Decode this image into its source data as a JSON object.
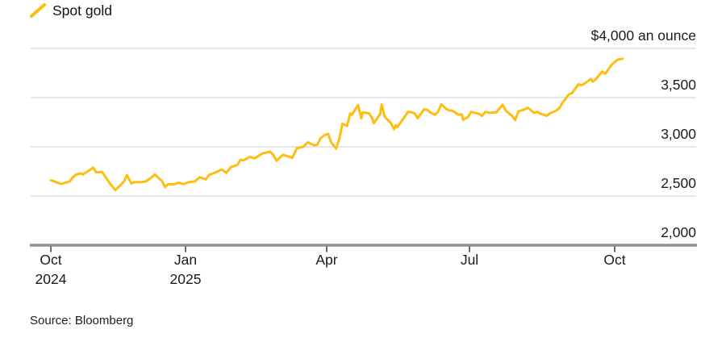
{
  "page": {
    "background": "#FFFFFF"
  },
  "legend": {
    "label": "Spot gold"
  },
  "source": {
    "text": "Source: Bloomberg"
  },
  "colors": {
    "line": "#FDBE10",
    "grid": "#DFDFDF",
    "axis_baseline": "#8F8F8F",
    "tick_mark": "#5A5A5A",
    "text": "#1B1B20"
  },
  "chart_data": {
    "type": "line",
    "grid": "horizontal",
    "legend_position": "top-left",
    "y_axis": {
      "side": "right",
      "range": [
        2000,
        4000
      ],
      "ticks": [
        {
          "value": 4000,
          "label": "$4,000 an ounce"
        },
        {
          "value": 3500,
          "label": "3,500"
        },
        {
          "value": 3000,
          "label": "3,000"
        },
        {
          "value": 2500,
          "label": "2,500"
        },
        {
          "value": 2000,
          "label": "2,000"
        }
      ]
    },
    "x_axis": {
      "ticks": [
        {
          "date": "2024-10-01",
          "label": "Oct",
          "sublabel": "2024"
        },
        {
          "date": "2025-01-01",
          "label": "Jan",
          "sublabel": "2025"
        },
        {
          "date": "2025-04-01",
          "label": "Apr",
          "sublabel": ""
        },
        {
          "date": "2025-07-01",
          "label": "Jul",
          "sublabel": ""
        },
        {
          "date": "2025-10-01",
          "label": "Oct",
          "sublabel": ""
        }
      ]
    },
    "series": [
      {
        "name": "Spot gold",
        "color": "#FDBE10",
        "points": [
          [
            "2024-10-01",
            2660
          ],
          [
            "2024-10-03",
            2650
          ],
          [
            "2024-10-08",
            2622
          ],
          [
            "2024-10-10",
            2632
          ],
          [
            "2024-10-14",
            2648
          ],
          [
            "2024-10-16",
            2690
          ],
          [
            "2024-10-18",
            2715
          ],
          [
            "2024-10-21",
            2730
          ],
          [
            "2024-10-23",
            2720
          ],
          [
            "2024-10-25",
            2740
          ],
          [
            "2024-10-30",
            2788
          ],
          [
            "2024-11-01",
            2740
          ],
          [
            "2024-11-05",
            2746
          ],
          [
            "2024-11-07",
            2700
          ],
          [
            "2024-11-11",
            2615
          ],
          [
            "2024-11-14",
            2560
          ],
          [
            "2024-11-18",
            2615
          ],
          [
            "2024-11-20",
            2650
          ],
          [
            "2024-11-22",
            2712
          ],
          [
            "2024-11-25",
            2628
          ],
          [
            "2024-11-27",
            2640
          ],
          [
            "2024-12-02",
            2642
          ],
          [
            "2024-12-05",
            2648
          ],
          [
            "2024-12-09",
            2692
          ],
          [
            "2024-12-11",
            2718
          ],
          [
            "2024-12-16",
            2650
          ],
          [
            "2024-12-18",
            2590
          ],
          [
            "2024-12-20",
            2620
          ],
          [
            "2024-12-24",
            2618
          ],
          [
            "2024-12-27",
            2635
          ],
          [
            "2024-12-31",
            2622
          ],
          [
            "2025-01-03",
            2640
          ],
          [
            "2025-01-07",
            2648
          ],
          [
            "2025-01-10",
            2690
          ],
          [
            "2025-01-14",
            2670
          ],
          [
            "2025-01-16",
            2715
          ],
          [
            "2025-01-21",
            2745
          ],
          [
            "2025-01-24",
            2770
          ],
          [
            "2025-01-27",
            2735
          ],
          [
            "2025-01-30",
            2794
          ],
          [
            "2025-02-03",
            2815
          ],
          [
            "2025-02-05",
            2868
          ],
          [
            "2025-02-07",
            2862
          ],
          [
            "2025-02-11",
            2898
          ],
          [
            "2025-02-14",
            2883
          ],
          [
            "2025-02-19",
            2933
          ],
          [
            "2025-02-21",
            2940
          ],
          [
            "2025-02-24",
            2950
          ],
          [
            "2025-02-26",
            2915
          ],
          [
            "2025-02-28",
            2858
          ],
          [
            "2025-03-04",
            2918
          ],
          [
            "2025-03-06",
            2910
          ],
          [
            "2025-03-10",
            2888
          ],
          [
            "2025-03-13",
            2985
          ],
          [
            "2025-03-17",
            3000
          ],
          [
            "2025-03-20",
            3045
          ],
          [
            "2025-03-24",
            3015
          ],
          [
            "2025-03-26",
            3020
          ],
          [
            "2025-03-28",
            3085
          ],
          [
            "2025-03-31",
            3122
          ],
          [
            "2025-04-02",
            3130
          ],
          [
            "2025-04-04",
            3040
          ],
          [
            "2025-04-07",
            2982
          ],
          [
            "2025-04-09",
            3080
          ],
          [
            "2025-04-11",
            3235
          ],
          [
            "2025-04-14",
            3212
          ],
          [
            "2025-04-16",
            3340
          ],
          [
            "2025-04-17",
            3325
          ],
          [
            "2025-04-21",
            3425
          ],
          [
            "2025-04-23",
            3290
          ],
          [
            "2025-04-24",
            3350
          ],
          [
            "2025-04-28",
            3340
          ],
          [
            "2025-04-30",
            3290
          ],
          [
            "2025-05-01",
            3240
          ],
          [
            "2025-05-05",
            3330
          ],
          [
            "2025-05-06",
            3430
          ],
          [
            "2025-05-08",
            3305
          ],
          [
            "2025-05-12",
            3240
          ],
          [
            "2025-05-14",
            3180
          ],
          [
            "2025-05-15",
            3220
          ],
          [
            "2025-05-16",
            3200
          ],
          [
            "2025-05-20",
            3290
          ],
          [
            "2025-05-23",
            3358
          ],
          [
            "2025-05-27",
            3342
          ],
          [
            "2025-05-29",
            3290
          ],
          [
            "2025-06-02",
            3380
          ],
          [
            "2025-06-04",
            3376
          ],
          [
            "2025-06-06",
            3350
          ],
          [
            "2025-06-09",
            3325
          ],
          [
            "2025-06-11",
            3355
          ],
          [
            "2025-06-13",
            3432
          ],
          [
            "2025-06-16",
            3388
          ],
          [
            "2025-06-18",
            3370
          ],
          [
            "2025-06-20",
            3368
          ],
          [
            "2025-06-24",
            3325
          ],
          [
            "2025-06-26",
            3332
          ],
          [
            "2025-06-27",
            3274
          ],
          [
            "2025-06-30",
            3302
          ],
          [
            "2025-07-02",
            3355
          ],
          [
            "2025-07-07",
            3335
          ],
          [
            "2025-07-09",
            3315
          ],
          [
            "2025-07-11",
            3355
          ],
          [
            "2025-07-14",
            3345
          ],
          [
            "2025-07-16",
            3348
          ],
          [
            "2025-07-18",
            3350
          ],
          [
            "2025-07-22",
            3428
          ],
          [
            "2025-07-24",
            3368
          ],
          [
            "2025-07-28",
            3314
          ],
          [
            "2025-07-30",
            3272
          ],
          [
            "2025-08-01",
            3360
          ],
          [
            "2025-08-05",
            3380
          ],
          [
            "2025-08-07",
            3397
          ],
          [
            "2025-08-11",
            3344
          ],
          [
            "2025-08-13",
            3356
          ],
          [
            "2025-08-15",
            3336
          ],
          [
            "2025-08-19",
            3316
          ],
          [
            "2025-08-21",
            3340
          ],
          [
            "2025-08-25",
            3368
          ],
          [
            "2025-08-27",
            3395
          ],
          [
            "2025-08-29",
            3448
          ],
          [
            "2025-09-02",
            3533
          ],
          [
            "2025-09-04",
            3546
          ],
          [
            "2025-09-08",
            3635
          ],
          [
            "2025-09-10",
            3625
          ],
          [
            "2025-09-12",
            3645
          ],
          [
            "2025-09-16",
            3690
          ],
          [
            "2025-09-17",
            3662
          ],
          [
            "2025-09-19",
            3685
          ],
          [
            "2025-09-23",
            3764
          ],
          [
            "2025-09-25",
            3742
          ],
          [
            "2025-09-29",
            3833
          ],
          [
            "2025-10-01",
            3862
          ],
          [
            "2025-10-03",
            3886
          ],
          [
            "2025-10-06",
            3895
          ]
        ]
      }
    ]
  }
}
